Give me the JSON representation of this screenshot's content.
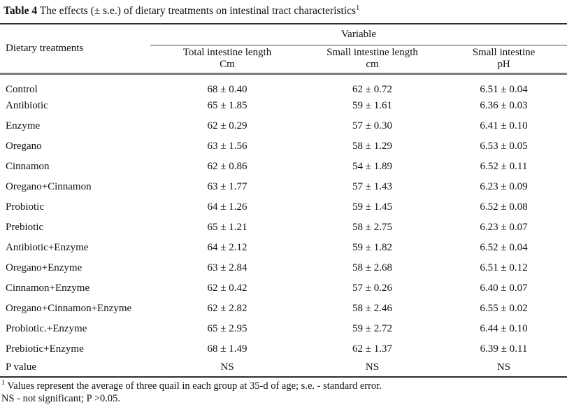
{
  "title": {
    "table_label": "Table 4",
    "caption": " The effects (± s.e.) of dietary treatments on intestinal tract characteristics",
    "footnote_marker": "1"
  },
  "table": {
    "col1_header": "Dietary treatments",
    "group_header": "Variable",
    "columns": [
      {
        "name": "Total intestine length",
        "unit": "Cm"
      },
      {
        "name": "Small intestine length",
        "unit": "cm"
      },
      {
        "name": "Small intestine",
        "unit": "pH"
      }
    ],
    "rows": [
      {
        "treatment": "Control",
        "total": "68 ± 0.40",
        "small": "62 ± 0.72",
        "ph": "6.51 ± 0.04"
      },
      {
        "treatment": "Antibiotic",
        "total": "65 ± 1.85",
        "small": "59 ± 1.61",
        "ph": "6.36 ± 0.03"
      },
      {
        "treatment": "Enzyme",
        "total": "62 ± 0.29",
        "small": "57 ± 0.30",
        "ph": "6.41 ± 0.10"
      },
      {
        "treatment": "Oregano",
        "total": "63 ± 1.56",
        "small": "58 ± 1.29",
        "ph": "6.53 ± 0.05"
      },
      {
        "treatment": "Cinnamon",
        "total": "62 ± 0.86",
        "small": "54 ± 1.89",
        "ph": "6.52 ± 0.11"
      },
      {
        "treatment": "Oregano+Cinnamon",
        "total": "63 ± 1.77",
        "small": "57 ± 1.43",
        "ph": "6.23 ± 0.09"
      },
      {
        "treatment": "Probiotic",
        "total": "64 ± 1.26",
        "small": "59 ± 1.45",
        "ph": "6.52 ± 0.08"
      },
      {
        "treatment": "Prebiotic",
        "total": "65 ± 1.21",
        "small": "58 ± 2.75",
        "ph": "6.23 ± 0.07"
      },
      {
        "treatment": "Antibiotic+Enzyme",
        "total": "64 ± 2.12",
        "small": "59 ± 1.82",
        "ph": "6.52 ± 0.04"
      },
      {
        "treatment": "Oregano+Enzyme",
        "total": "63 ± 2.84",
        "small": "58 ± 2.68",
        "ph": "6.51 ± 0.12"
      },
      {
        "treatment": "Cinnamon+Enzyme",
        "total": "62 ± 0.42",
        "small": "57 ± 0.26",
        "ph": "6.40 ± 0.07"
      },
      {
        "treatment": "Oregano+Cinnamon+Enzyme",
        "total": "62 ± 2.82",
        "small": "58 ± 2.46",
        "ph": "6.55 ± 0.02"
      },
      {
        "treatment": "Probiotic.+Enzyme",
        "total": "65 ± 2.95",
        "small": "59 ± 2.72",
        "ph": "6.44 ± 0.10"
      },
      {
        "treatment": "Prebiotic+Enzyme",
        "total": "68 ± 1.49",
        "small": "62 ± 1.37",
        "ph": "6.39 ± 0.11"
      },
      {
        "treatment": "P value",
        "total": "NS",
        "small": "NS",
        "ph": "NS"
      }
    ]
  },
  "footnotes": {
    "marker": "1",
    "line1": " Values represent the average of three quail in each group at 35-d of age; s.e. - standard error.",
    "line2": "NS - not significant; P >0.05."
  }
}
